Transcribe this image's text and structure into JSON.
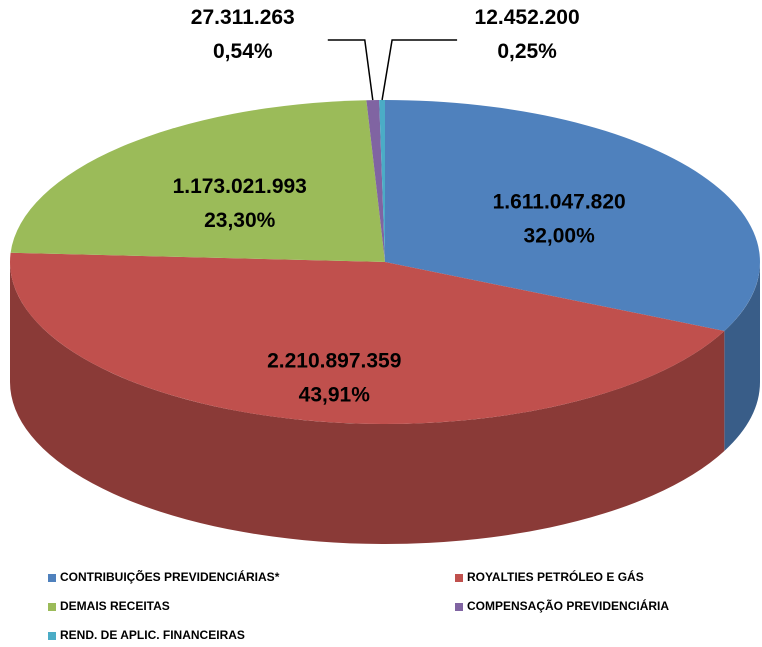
{
  "chart_data": {
    "type": "pie",
    "categories": [
      "CONTRIBUIÇÕES PREVIDENCIÁRIAS*",
      "ROYALTIES PETRÓLEO E GÁS",
      "DEMAIS RECEITAS",
      "COMPENSAÇÃO PREVIDENCIÁRIA",
      "REND. DE APLIC. FINANCEIRAS"
    ],
    "values": [
      1611047820,
      2210897359,
      1173021993,
      27311263,
      12452200
    ],
    "value_labels": [
      "1.611.047.820",
      "2.210.897.359",
      "1.173.021.993",
      "27.311.263",
      "12.452.200"
    ],
    "percents": [
      32.0,
      43.91,
      23.3,
      0.54,
      0.25
    ],
    "percent_labels": [
      "32,00%",
      "43,91%",
      "23,30%",
      "0,54%",
      "0,25%"
    ],
    "colors": [
      "#4f81bd",
      "#c0504d",
      "#9bbb59",
      "#8064a2",
      "#4bacc6"
    ],
    "legend": "bottom"
  }
}
